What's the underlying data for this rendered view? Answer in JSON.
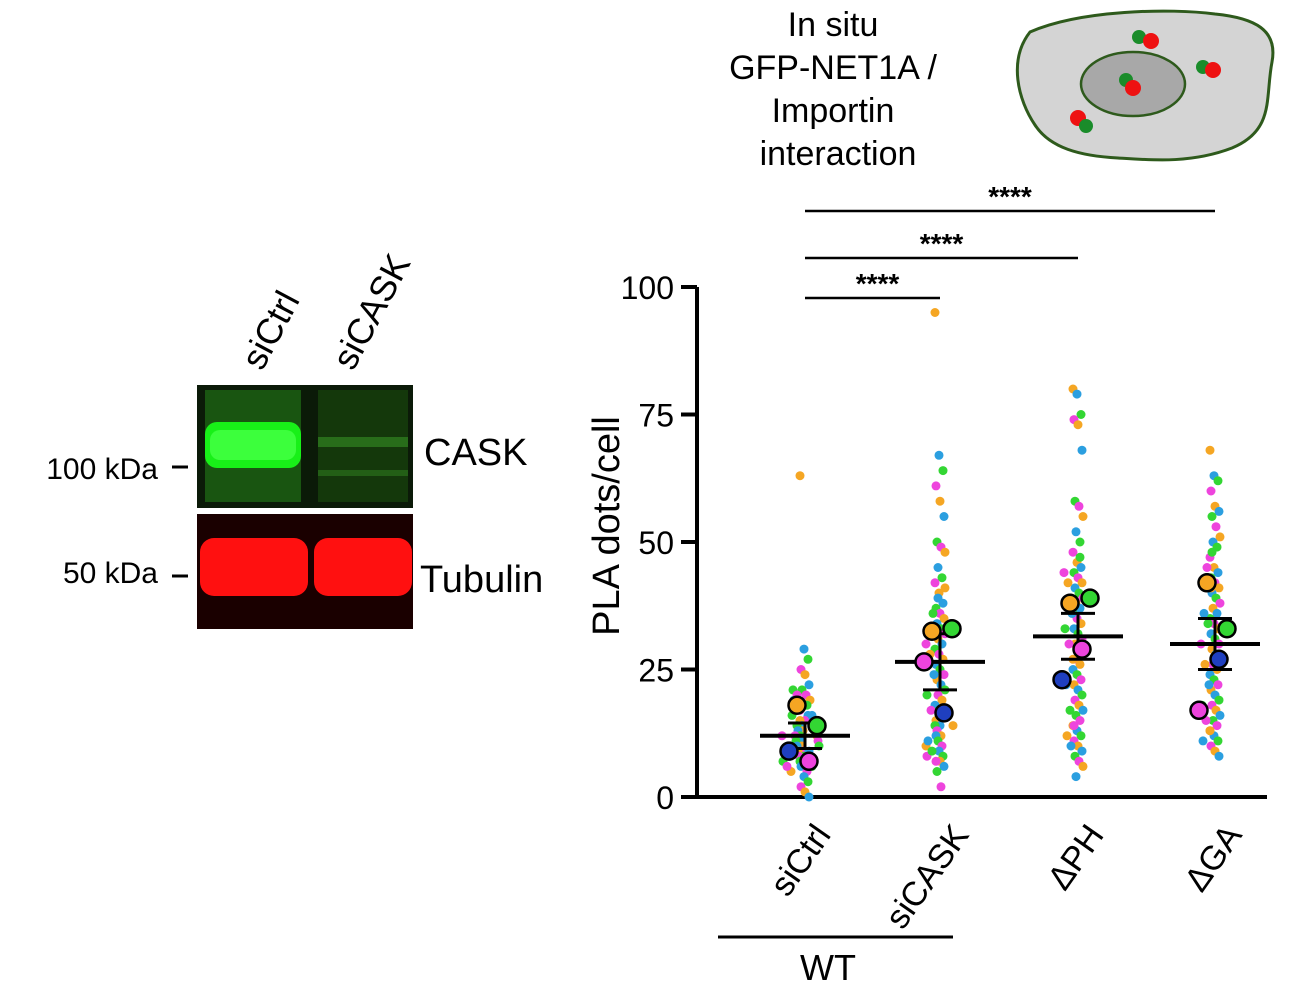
{
  "western_blot": {
    "lanes": [
      "siCtrl",
      "siCASK"
    ],
    "bands": [
      {
        "label": "CASK",
        "marker": "100 kDa",
        "color": "#00e000"
      },
      {
        "label": "Tubulin",
        "marker": "50 kDa",
        "color": "#ff0000"
      }
    ]
  },
  "schematic": {
    "title_lines": [
      "In situ",
      "GFP-NET1A /",
      "Importin",
      "interaction"
    ],
    "colors": {
      "cell": "#d4d4d4",
      "nucleus": "#a8a8a8",
      "outline": "#2e5a1c",
      "dot_green": "#1a8c2a",
      "dot_red": "#ee1111"
    }
  },
  "chart_data": {
    "type": "scatter",
    "ylabel": "PLA dots/cell",
    "ylim": [
      0,
      100
    ],
    "yticks": [
      0,
      25,
      50,
      75,
      100
    ],
    "categories": [
      "siCtrl",
      "siCASK",
      "ΔPH",
      "ΔGA"
    ],
    "group_label": "WT",
    "group_categories": [
      "siCtrl",
      "siCASK"
    ],
    "mean": [
      12,
      26.5,
      31.5,
      30
    ],
    "sem": [
      2.5,
      5.5,
      4.5,
      5
    ],
    "replicate_colors": [
      "#f5a623",
      "#2b9fe0",
      "#33d633",
      "#ee44dd"
    ],
    "replicate_means": [
      {
        "category": "siCtrl",
        "values": [
          18,
          14,
          7,
          9
        ],
        "colors": [
          "#f5a623",
          "#33d633",
          "#ee44dd",
          "#1f3fbf"
        ]
      },
      {
        "category": "siCASK",
        "values": [
          32.5,
          33,
          16.5,
          26.5
        ],
        "colors": [
          "#f5a623",
          "#33d633",
          "#1f3fbf",
          "#ee44dd"
        ]
      },
      {
        "category": "ΔPH",
        "values": [
          38,
          39,
          29,
          23
        ],
        "colors": [
          "#f5a623",
          "#33d633",
          "#ee44dd",
          "#1f3fbf"
        ]
      },
      {
        "category": "ΔGA",
        "values": [
          42,
          33,
          27,
          17
        ],
        "colors": [
          "#f5a623",
          "#33d633",
          "#1f3fbf",
          "#ee44dd"
        ]
      }
    ],
    "significance": [
      {
        "from": "siCtrl",
        "to": "siCASK",
        "label": "****"
      },
      {
        "from": "siCtrl",
        "to": "ΔPH",
        "label": "****"
      },
      {
        "from": "siCtrl",
        "to": "ΔGA",
        "label": "****"
      }
    ],
    "points": [
      {
        "category": "siCtrl",
        "values": [
          63,
          29,
          27,
          25,
          24,
          22,
          21,
          20,
          19,
          19,
          18,
          17,
          17,
          16,
          16,
          15,
          15,
          14,
          14,
          14,
          13,
          13,
          12,
          12,
          12,
          11,
          11,
          11,
          10,
          10,
          10,
          9,
          9,
          9,
          8,
          8,
          8,
          7,
          7,
          7,
          6,
          6,
          6,
          5,
          5,
          4,
          3,
          2,
          1,
          0,
          21,
          20,
          18,
          16,
          13,
          12,
          9,
          8,
          7,
          6
        ]
      },
      {
        "category": "siCASK",
        "values": [
          95,
          67,
          64,
          61,
          58,
          55,
          50,
          49,
          48,
          45,
          43,
          42,
          40,
          38,
          37,
          36,
          35,
          34,
          33,
          32,
          31,
          30,
          29,
          28,
          27,
          26,
          25,
          24,
          23,
          22,
          21,
          20,
          19,
          18,
          17,
          16,
          15,
          14,
          14,
          13,
          12,
          12,
          11,
          10,
          10,
          9,
          8,
          8,
          7,
          6,
          5,
          2,
          41,
          39,
          36,
          30,
          28,
          24,
          20,
          17,
          14,
          11,
          9,
          7
        ]
      },
      {
        "category": "ΔPH",
        "values": [
          80,
          79,
          75,
          74,
          73,
          68,
          58,
          57,
          55,
          52,
          50,
          48,
          46,
          45,
          44,
          43,
          42,
          41,
          40,
          39,
          38,
          37,
          36,
          35,
          34,
          33,
          32,
          31,
          30,
          29,
          28,
          27,
          26,
          25,
          24,
          23,
          22,
          21,
          20,
          19,
          18,
          17,
          16,
          15,
          14,
          13,
          12,
          11,
          10,
          9,
          8,
          7,
          6,
          4,
          47,
          44,
          42,
          36,
          33,
          30,
          27,
          22,
          17,
          14,
          12,
          10
        ]
      },
      {
        "category": "ΔGA",
        "values": [
          68,
          63,
          62,
          60,
          57,
          56,
          55,
          53,
          51,
          50,
          49,
          47,
          45,
          44,
          43,
          42,
          41,
          40,
          39,
          38,
          37,
          36,
          35,
          34,
          33,
          32,
          31,
          30,
          29,
          28,
          27,
          26,
          25,
          24,
          23,
          22,
          21,
          20,
          19,
          18,
          17,
          16,
          15,
          14,
          13,
          12,
          11,
          10,
          9,
          8,
          48,
          45,
          41,
          36,
          34,
          30,
          26,
          22,
          18,
          15,
          13,
          11
        ]
      }
    ]
  }
}
